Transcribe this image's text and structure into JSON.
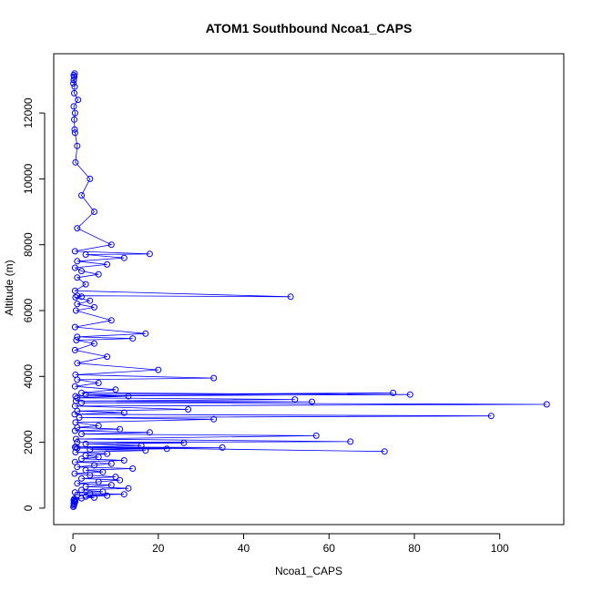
{
  "chart_data": {
    "type": "line",
    "title": "ATOM1 Southbound Ncoa1_CAPS",
    "xlabel": "Ncoa1_CAPS",
    "ylabel": "Altitude (m)",
    "xlim": [
      -4.5,
      115
    ],
    "ylim": [
      -500,
      13800
    ],
    "xticks": [
      0,
      20,
      40,
      60,
      80,
      100
    ],
    "yticks": [
      0,
      2000,
      4000,
      6000,
      8000,
      10000,
      12000
    ],
    "grid": false,
    "legend": "none",
    "marker": "open-circle",
    "series_color": "#0000ff",
    "series": [
      {
        "x": [
          0.1,
          0.2,
          0.3,
          0.2,
          0.5,
          0.3,
          0.4,
          0.2,
          0.6,
          0.3,
          2,
          5,
          3,
          8,
          1,
          12,
          4,
          0.5,
          7,
          2,
          13,
          3,
          9,
          1,
          6,
          11,
          2,
          10,
          4,
          0.4,
          7,
          3,
          14,
          1,
          5,
          9,
          0.5,
          12,
          2,
          6,
          3,
          8,
          0.6,
          17,
          4,
          22,
          1,
          35,
          0.8,
          73,
          0.5,
          16,
          3,
          26,
          1,
          65,
          0.7,
          57,
          2,
          18,
          0.5,
          11,
          1,
          6,
          0.6,
          33,
          1.5,
          98,
          0.4,
          12,
          1,
          27,
          0.5,
          111,
          2,
          56,
          0.7,
          52,
          1,
          13,
          3,
          75,
          0.6,
          79,
          2,
          10,
          0.5,
          6,
          1,
          33,
          0.6,
          20,
          1,
          8,
          0.5,
          5,
          0.8,
          14,
          1,
          17,
          0.5,
          9,
          0.7,
          5,
          1,
          4,
          0.6,
          2,
          1,
          51,
          0.5,
          3,
          1,
          6,
          2,
          0.5,
          8,
          1,
          12,
          3,
          18,
          0.5,
          9,
          1,
          5,
          2,
          4,
          0.6,
          1,
          0.5,
          0.4,
          0.3,
          0.5,
          0.2,
          1.2,
          0.3,
          0.4,
          0.2,
          0.3,
          0.2,
          0.4,
          0.3,
          0.2,
          0.1
        ],
        "y": [
          40,
          80,
          120,
          150,
          180,
          200,
          220,
          240,
          260,
          280,
          300,
          320,
          350,
          380,
          400,
          420,
          450,
          480,
          500,
          550,
          600,
          650,
          700,
          750,
          800,
          850,
          900,
          950,
          1000,
          1050,
          1100,
          1150,
          1200,
          1250,
          1300,
          1350,
          1400,
          1450,
          1500,
          1550,
          1600,
          1650,
          1700,
          1750,
          1780,
          1800,
          1820,
          1840,
          1860,
          1720,
          1850,
          1900,
          1950,
          1980,
          2000,
          2020,
          2100,
          2200,
          2250,
          2300,
          2350,
          2400,
          2450,
          2500,
          2600,
          2700,
          2750,
          2800,
          2850,
          2900,
          2950,
          3000,
          3100,
          3150,
          3200,
          3230,
          3250,
          3300,
          3350,
          3400,
          3450,
          3500,
          3400,
          3450,
          3500,
          3600,
          3700,
          3800,
          3900,
          3950,
          4050,
          4200,
          4400,
          4600,
          4800,
          5000,
          5100,
          5150,
          5200,
          5300,
          5500,
          5700,
          6000,
          6100,
          6200,
          6300,
          6400,
          6420,
          6450,
          6420,
          6600,
          6800,
          7000,
          7100,
          7200,
          7300,
          7400,
          7500,
          7600,
          7700,
          7720,
          7800,
          8000,
          8500,
          9000,
          9500,
          10000,
          10500,
          11000,
          11400,
          11500,
          11800,
          12000,
          12200,
          12400,
          12600,
          12800,
          13000,
          13100,
          13150,
          13200,
          13100,
          13000,
          12900
        ]
      }
    ]
  }
}
